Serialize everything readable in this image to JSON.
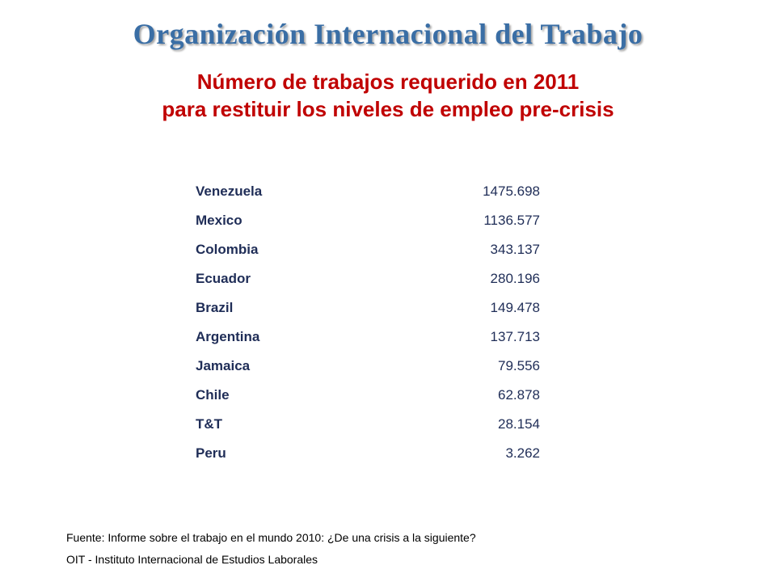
{
  "header": {
    "org_title": "Organización Internacional del Trabajo",
    "subtitle_line1": "Número de trabajos requerido en 2011",
    "subtitle_line2": "para restituir los niveles de empleo pre-crisis"
  },
  "table": {
    "rows": [
      {
        "country": "Venezuela",
        "value": "1475.698"
      },
      {
        "country": "Mexico",
        "value": "1136.577"
      },
      {
        "country": "Colombia",
        "value": "343.137"
      },
      {
        "country": "Ecuador",
        "value": "280.196"
      },
      {
        "country": "Brazil",
        "value": "149.478"
      },
      {
        "country": "Argentina",
        "value": "137.713"
      },
      {
        "country": "Jamaica",
        "value": "79.556"
      },
      {
        "country": "Chile",
        "value": "62.878"
      },
      {
        "country": "T&T",
        "value": "28.154"
      },
      {
        "country": "Peru",
        "value": "3.262"
      }
    ]
  },
  "footer": {
    "source": "Fuente: Informe sobre el trabajo en el mundo 2010:  ¿De una crisis a la siguiente?",
    "institute": "OIT - Instituto Internacional de Estudios Laborales"
  },
  "colors": {
    "title": "#3a6ea5",
    "subtitle": "#c00000",
    "table_text": "#1f2d57"
  }
}
